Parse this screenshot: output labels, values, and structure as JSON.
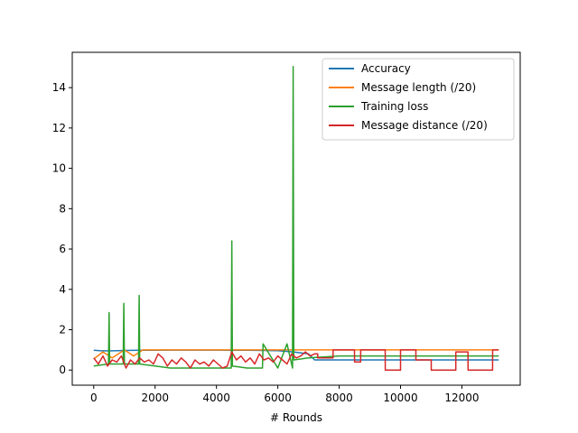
{
  "chart_data": {
    "type": "line",
    "title": "",
    "xlabel": "# Rounds",
    "ylabel": "",
    "xlim": [
      -700,
      13900
    ],
    "ylim": [
      -0.75,
      15.75
    ],
    "xticks": [
      0,
      2000,
      4000,
      6000,
      8000,
      10000,
      12000
    ],
    "yticks": [
      0,
      2,
      4,
      6,
      8,
      10,
      12,
      14
    ],
    "grid": false,
    "legend_position": "top-right",
    "series": [
      {
        "name": "Accuracy",
        "color": "#1f77b4",
        "x": [
          0,
          200,
          500,
          1000,
          1500,
          2000,
          2500,
          3000,
          3500,
          4000,
          4500,
          5000,
          5500,
          6000,
          6500,
          7000,
          7200,
          7500,
          8000,
          8500,
          9000,
          9500,
          10000,
          10500,
          11000,
          11500,
          12000,
          12500,
          13000,
          13200
        ],
        "values": [
          0.98,
          0.96,
          0.95,
          0.97,
          0.98,
          0.98,
          0.99,
          0.99,
          0.99,
          0.99,
          0.98,
          0.98,
          0.97,
          0.96,
          0.9,
          0.8,
          0.5,
          0.5,
          0.5,
          0.5,
          0.5,
          0.5,
          0.5,
          0.5,
          0.5,
          0.5,
          0.5,
          0.5,
          0.5,
          0.5
        ]
      },
      {
        "name": "Message length (/20)",
        "color": "#ff7f0e",
        "x": [
          0,
          300,
          600,
          1000,
          1300,
          1600,
          2000,
          2500,
          3000,
          3500,
          4000,
          4500,
          5000,
          5500,
          6000,
          6500,
          7000,
          7500,
          8000,
          9000,
          10000,
          11000,
          12000,
          13000,
          13200
        ],
        "values": [
          0.55,
          0.9,
          0.6,
          1.0,
          0.7,
          1.0,
          1.0,
          1.0,
          1.0,
          1.0,
          1.0,
          1.0,
          1.0,
          1.0,
          1.0,
          1.0,
          1.0,
          1.0,
          1.0,
          1.0,
          1.0,
          1.0,
          1.0,
          1.0,
          1.0
        ]
      },
      {
        "name": "Training loss",
        "color": "#2ca02c",
        "x": [
          0,
          480,
          500,
          520,
          960,
          980,
          1000,
          1460,
          1480,
          1500,
          2000,
          2500,
          3000,
          3500,
          4000,
          4480,
          4500,
          4520,
          5000,
          5500,
          5520,
          6000,
          6300,
          6480,
          6500,
          6520,
          7000,
          8000,
          9000,
          10000,
          11000,
          12000,
          13000,
          13200
        ],
        "values": [
          0.2,
          0.3,
          2.85,
          0.3,
          0.3,
          3.3,
          0.3,
          0.3,
          3.7,
          0.3,
          0.2,
          0.1,
          0.1,
          0.1,
          0.1,
          0.1,
          6.4,
          0.2,
          0.1,
          0.1,
          1.3,
          0.1,
          1.3,
          0.1,
          15.05,
          0.5,
          0.6,
          0.7,
          0.7,
          0.7,
          0.7,
          0.7,
          0.7,
          0.7
        ]
      },
      {
        "name": "Message distance (/20)",
        "color": "#d62728",
        "x": [
          0,
          150,
          300,
          450,
          600,
          750,
          900,
          1050,
          1200,
          1350,
          1500,
          1650,
          1800,
          1950,
          2100,
          2250,
          2400,
          2550,
          2700,
          2850,
          3000,
          3150,
          3300,
          3450,
          3600,
          3750,
          3900,
          4050,
          4200,
          4350,
          4500,
          4650,
          4800,
          4950,
          5100,
          5250,
          5400,
          5550,
          5700,
          5850,
          6000,
          6150,
          6300,
          6450,
          6600,
          6750,
          6900,
          7050,
          7200,
          7300,
          7301,
          7800,
          7801,
          8500,
          8501,
          8700,
          8701,
          9500,
          9501,
          10000,
          10001,
          10500,
          10501,
          11000,
          11001,
          11800,
          11801,
          12200,
          12201,
          13000,
          13001,
          13200
        ],
        "values": [
          0.6,
          0.3,
          0.7,
          0.2,
          0.5,
          0.4,
          0.7,
          0.1,
          0.5,
          0.3,
          0.6,
          0.4,
          0.5,
          0.3,
          0.8,
          0.6,
          0.2,
          0.5,
          0.3,
          0.6,
          0.4,
          0.1,
          0.5,
          0.3,
          0.4,
          0.2,
          0.5,
          0.3,
          0.1,
          0.2,
          0.9,
          0.5,
          0.7,
          0.4,
          0.6,
          0.3,
          0.8,
          0.5,
          0.6,
          0.4,
          0.7,
          0.5,
          0.3,
          0.8,
          0.6,
          0.7,
          0.9,
          0.7,
          0.8,
          0.8,
          0.6,
          0.6,
          1.0,
          1.0,
          0.4,
          0.4,
          1.0,
          1.0,
          0.0,
          0.0,
          1.0,
          1.0,
          0.5,
          0.5,
          0.0,
          0.0,
          0.9,
          0.9,
          0.0,
          0.0,
          1.0,
          1.0
        ]
      }
    ]
  }
}
